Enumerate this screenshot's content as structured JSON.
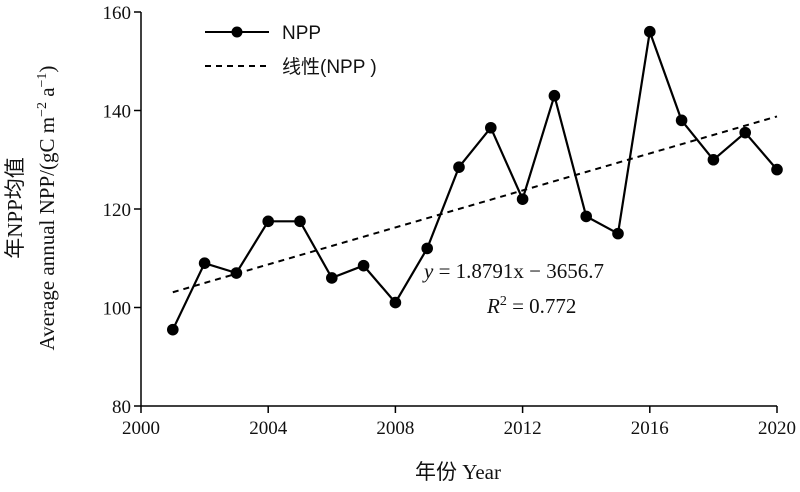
{
  "chart_data": {
    "type": "line",
    "title": "",
    "xlabel": "年份 Year",
    "ylabel_line1": "年NPP均值",
    "ylabel_line2": "Average annual NPP/(gC m",
    "ylabel_sup1": "−2",
    "ylabel_mid": " a",
    "ylabel_sup2": "−1",
    "ylabel_end": ")",
    "xlim": [
      2000,
      2020
    ],
    "ylim": [
      80,
      160
    ],
    "xticks": [
      2000,
      2004,
      2008,
      2012,
      2016,
      2020
    ],
    "yticks": [
      80,
      100,
      120,
      140,
      160
    ],
    "grid": false,
    "legend_position": "top-left",
    "series": [
      {
        "name": "NPP",
        "style": "solid-line-circle-markers",
        "color": "#000000",
        "x": [
          2001,
          2002,
          2003,
          2004,
          2005,
          2006,
          2007,
          2008,
          2009,
          2010,
          2011,
          2012,
          2013,
          2014,
          2015,
          2016,
          2017,
          2018,
          2019,
          2020
        ],
        "y": [
          95.5,
          109,
          107,
          117.5,
          117.5,
          106,
          108.5,
          101,
          112,
          128.5,
          136.5,
          122,
          143,
          118.5,
          115,
          156,
          138,
          130,
          135.5,
          128
        ]
      },
      {
        "name": "线性(NPP  )",
        "style": "dashed",
        "color": "#000000",
        "x": [
          2001,
          2020
        ],
        "y": [
          103.1,
          138.8
        ]
      }
    ],
    "annotations": {
      "equation_var": "y",
      "equation_rest": " = 1.8791x − 3656.7",
      "r2_var": "R",
      "r2_sup": "2",
      "r2_rest": " = 0.772"
    }
  }
}
